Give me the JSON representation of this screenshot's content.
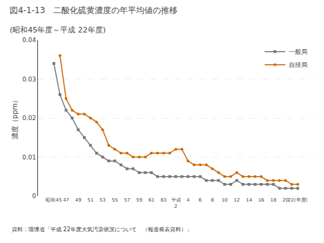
{
  "chart_data": {
    "type": "line",
    "title": "図4-1-13　二酸化硫黄濃度の年平均値の推移",
    "subtitle": "(昭和45年度～平成 22年度)",
    "y_label": "濃度（ppm）",
    "annotations": [
      "資料：環境省「平成 22年度大気汚染状況について　（報道発表資料）」"
    ],
    "categories": [
      "昭和45",
      null,
      "47",
      null,
      "49",
      null,
      "51",
      null,
      "53",
      null,
      "55",
      null,
      "57",
      null,
      "59",
      null,
      "61",
      null,
      "63",
      null,
      "平成\n2",
      null,
      "4",
      null,
      "6",
      null,
      "8",
      null,
      "10",
      null,
      "12",
      null,
      "14",
      null,
      "16",
      null,
      "18",
      null,
      "20",
      null,
      "22(年度)"
    ],
    "series": [
      {
        "name": "一般局",
        "color": "#777777",
        "marker": "square",
        "values": [
          0.034,
          0.026,
          0.022,
          0.02,
          0.017,
          0.015,
          0.013,
          0.011,
          0.01,
          0.009,
          0.009,
          0.008,
          0.007,
          0.007,
          0.006,
          0.006,
          0.006,
          0.005,
          0.005,
          0.005,
          0.005,
          0.005,
          0.005,
          0.005,
          0.005,
          0.004,
          0.004,
          0.004,
          0.003,
          0.003,
          0.004,
          0.003,
          0.003,
          0.003,
          0.003,
          0.003,
          0.003,
          0.002,
          0.002,
          0.002,
          0.002
        ]
      },
      {
        "name": "自排局",
        "color": "#cc6600",
        "marker": "circle",
        "values": [
          null,
          0.036,
          0.025,
          0.022,
          0.021,
          0.021,
          0.02,
          0.019,
          0.017,
          0.013,
          0.012,
          0.011,
          0.011,
          0.01,
          0.01,
          0.01,
          0.011,
          0.011,
          0.011,
          0.011,
          0.012,
          0.012,
          0.009,
          0.008,
          0.008,
          0.008,
          0.007,
          0.006,
          0.005,
          0.005,
          0.006,
          0.005,
          0.005,
          0.005,
          0.005,
          0.004,
          0.004,
          0.004,
          0.004,
          0.003,
          0.003
        ]
      }
    ],
    "ylim": [
      0,
      0.04
    ],
    "yticks": [
      0,
      0.01,
      0.02,
      0.03,
      0.04
    ],
    "grid": true,
    "legend": "upper right"
  }
}
